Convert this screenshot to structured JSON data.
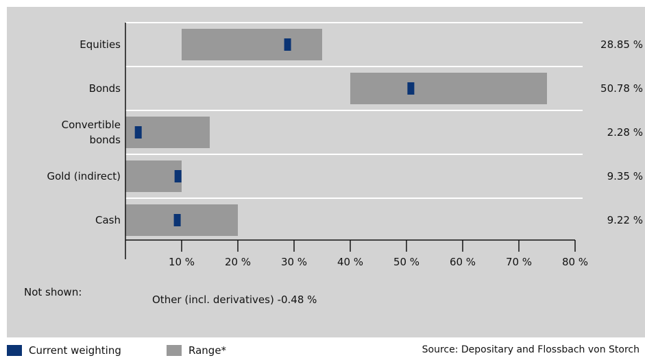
{
  "chart_data": {
    "type": "bar",
    "orientation": "horizontal",
    "categories": [
      [
        "Equities"
      ],
      [
        "Bonds"
      ],
      [
        "Convertible",
        "bonds"
      ],
      [
        "Gold (indirect)"
      ],
      [
        "Cash"
      ]
    ],
    "series": [
      {
        "name": "Range*",
        "ranges": [
          [
            10,
            35
          ],
          [
            40,
            75
          ],
          [
            0,
            15
          ],
          [
            0,
            10
          ],
          [
            0,
            20
          ]
        ]
      },
      {
        "name": "Current weighting",
        "values": [
          28.85,
          50.78,
          2.28,
          9.35,
          9.22
        ]
      }
    ],
    "value_labels": [
      "28.85 %",
      "50.78 %",
      "2.28 %",
      "9.35 %",
      "9.22 %"
    ],
    "x_ticks": [
      10,
      20,
      30,
      40,
      50,
      60,
      70,
      80
    ],
    "x_tick_labels": [
      "10 %",
      "20 %",
      "30 %",
      "40 %",
      "50 %",
      "60 %",
      "70 %",
      "80 %"
    ],
    "xlim": [
      0,
      80
    ],
    "grid": "horizontal",
    "legend_placement": "bottom-left"
  },
  "note": {
    "label": "Not shown:",
    "text": "Other (incl. derivatives) -0.48 %"
  },
  "legend": {
    "current_label": "Current weighting",
    "range_label": "Range*"
  },
  "source": "Source: Depositary and Flossbach von Storch",
  "colors": {
    "panel": "#d3d3d3",
    "range_bar": "#999999",
    "current_marker": "#0b3474",
    "grid": "#ffffff",
    "axis": "#111111"
  }
}
